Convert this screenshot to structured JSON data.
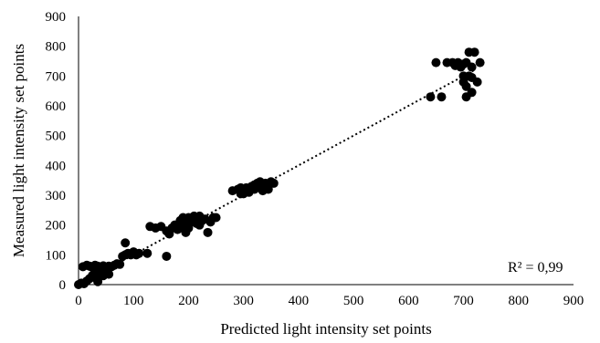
{
  "chart_data": {
    "type": "scatter",
    "title": "",
    "xlabel": "Predicted light intensity set points",
    "ylabel": "Measured light intensity set points",
    "xlim": [
      0,
      900
    ],
    "ylim": [
      0,
      900
    ],
    "xticks": [
      0,
      100,
      200,
      300,
      400,
      500,
      600,
      700,
      800,
      900
    ],
    "yticks": [
      0,
      100,
      200,
      300,
      400,
      500,
      600,
      700,
      800,
      900
    ],
    "grid": false,
    "legend": "none",
    "annotation": "R² = 0,99",
    "trendline": {
      "style": "dotted",
      "x": [
        0,
        720
      ],
      "y": [
        0,
        720
      ]
    },
    "marker_color": "#000000",
    "series": [
      {
        "points": [
          [
            0,
            0
          ],
          [
            5,
            5
          ],
          [
            10,
            3
          ],
          [
            15,
            12
          ],
          [
            8,
            60
          ],
          [
            15,
            65
          ],
          [
            20,
            62
          ],
          [
            25,
            58
          ],
          [
            30,
            65
          ],
          [
            35,
            62
          ],
          [
            40,
            55
          ],
          [
            45,
            63
          ],
          [
            50,
            58
          ],
          [
            55,
            62
          ],
          [
            30,
            45
          ],
          [
            40,
            35
          ],
          [
            50,
            40
          ],
          [
            20,
            20
          ],
          [
            30,
            25
          ],
          [
            35,
            10
          ],
          [
            25,
            30
          ],
          [
            45,
            30
          ],
          [
            55,
            35
          ],
          [
            60,
            60
          ],
          [
            65,
            65
          ],
          [
            70,
            70
          ],
          [
            75,
            68
          ],
          [
            80,
            95
          ],
          [
            85,
            100
          ],
          [
            90,
            105
          ],
          [
            95,
            100
          ],
          [
            100,
            110
          ],
          [
            105,
            100
          ],
          [
            85,
            140
          ],
          [
            110,
            105
          ],
          [
            125,
            105
          ],
          [
            160,
            95
          ],
          [
            130,
            195
          ],
          [
            140,
            190
          ],
          [
            150,
            195
          ],
          [
            160,
            180
          ],
          [
            165,
            170
          ],
          [
            170,
            190
          ],
          [
            175,
            200
          ],
          [
            180,
            185
          ],
          [
            185,
            195
          ],
          [
            190,
            210
          ],
          [
            195,
            175
          ],
          [
            200,
            190
          ],
          [
            200,
            225
          ],
          [
            205,
            215
          ],
          [
            210,
            230
          ],
          [
            215,
            205
          ],
          [
            220,
            200
          ],
          [
            225,
            215
          ],
          [
            230,
            220
          ],
          [
            235,
            175
          ],
          [
            240,
            210
          ],
          [
            245,
            225
          ],
          [
            250,
            225
          ],
          [
            190,
            225
          ],
          [
            185,
            215
          ],
          [
            195,
            200
          ],
          [
            210,
            210
          ],
          [
            220,
            230
          ],
          [
            280,
            315
          ],
          [
            290,
            320
          ],
          [
            295,
            305
          ],
          [
            300,
            315
          ],
          [
            305,
            325
          ],
          [
            310,
            310
          ],
          [
            315,
            330
          ],
          [
            320,
            320
          ],
          [
            325,
            340
          ],
          [
            330,
            325
          ],
          [
            335,
            315
          ],
          [
            340,
            340
          ],
          [
            345,
            330
          ],
          [
            350,
            345
          ],
          [
            355,
            340
          ],
          [
            295,
            325
          ],
          [
            300,
            305
          ],
          [
            310,
            320
          ],
          [
            320,
            335
          ],
          [
            330,
            345
          ],
          [
            345,
            320
          ],
          [
            640,
            630
          ],
          [
            650,
            745
          ],
          [
            660,
            630
          ],
          [
            670,
            745
          ],
          [
            680,
            745
          ],
          [
            685,
            735
          ],
          [
            690,
            745
          ],
          [
            695,
            730
          ],
          [
            700,
            700
          ],
          [
            700,
            680
          ],
          [
            705,
            745
          ],
          [
            705,
            665
          ],
          [
            710,
            780
          ],
          [
            710,
            700
          ],
          [
            715,
            695
          ],
          [
            715,
            645
          ],
          [
            720,
            780
          ],
          [
            725,
            680
          ],
          [
            730,
            745
          ],
          [
            705,
            630
          ],
          [
            700,
            740
          ],
          [
            715,
            730
          ]
        ]
      }
    ]
  }
}
